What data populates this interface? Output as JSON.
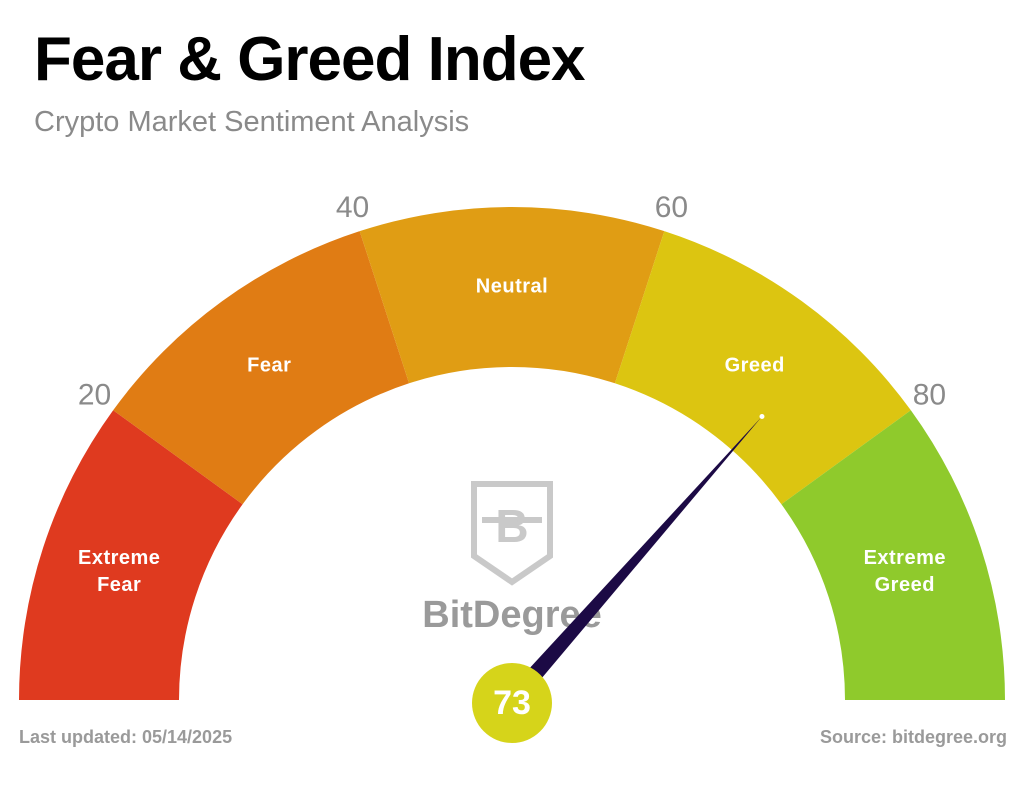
{
  "chart_data": {
    "type": "gauge",
    "title": "Fear & Greed Index",
    "subtitle": "Crypto Market Sentiment Analysis",
    "value": 73,
    "value_color": "#d6d41a",
    "needle_color": "#1c0a45",
    "lim": [
      0,
      100
    ],
    "ticks": [
      20,
      40,
      60,
      80
    ],
    "segments": [
      {
        "label": "Extreme Fear",
        "from": 0,
        "to": 20,
        "color": "#df3a1f"
      },
      {
        "label": "Fear",
        "from": 20,
        "to": 40,
        "color": "#e07c14"
      },
      {
        "label": "Neutral",
        "from": 40,
        "to": 60,
        "color": "#e09d14"
      },
      {
        "label": "Greed",
        "from": 60,
        "to": 80,
        "color": "#dcc511"
      },
      {
        "label": "Extreme Greed",
        "from": 80,
        "to": 100,
        "color": "#8fca2c"
      }
    ],
    "logo_text": "BitDegree",
    "last_updated": "Last updated: 05/14/2025",
    "source": "Source: bitdegree.org"
  }
}
